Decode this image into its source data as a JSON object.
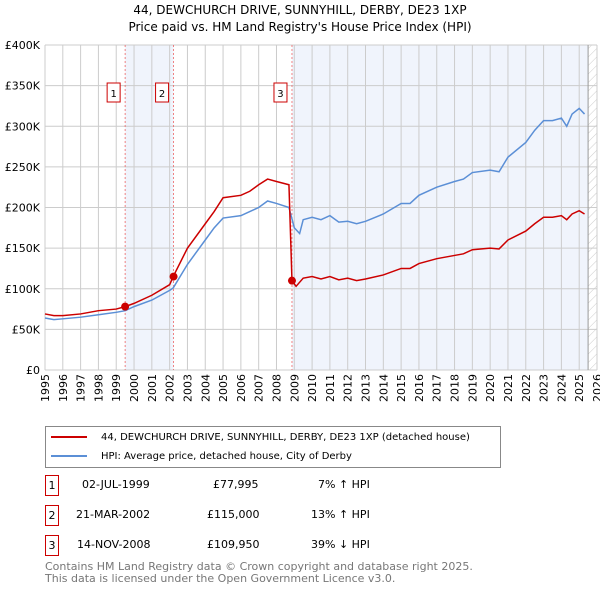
{
  "chart_data": {
    "type": "line",
    "title": "44, DEWCHURCH DRIVE, SUNNYHILL, DERBY, DE23 1XP",
    "subtitle": "Price paid vs. HM Land Registry's House Price Index (HPI)",
    "xlim": [
      1995,
      2026
    ],
    "ylim": [
      0,
      400000
    ],
    "x_ticks": [
      "1995",
      "1996",
      "1997",
      "1998",
      "1999",
      "2000",
      "2001",
      "2002",
      "2003",
      "2004",
      "2005",
      "2006",
      "2007",
      "2008",
      "2009",
      "2010",
      "2011",
      "2012",
      "2013",
      "2014",
      "2015",
      "2016",
      "2017",
      "2018",
      "2019",
      "2020",
      "2021",
      "2022",
      "2023",
      "2024",
      "2025",
      "2026"
    ],
    "y_ticks": [
      {
        "v": 0,
        "label": "£0"
      },
      {
        "v": 50000,
        "label": "£50K"
      },
      {
        "v": 100000,
        "label": "£100K"
      },
      {
        "v": 150000,
        "label": "£150K"
      },
      {
        "v": 200000,
        "label": "£200K"
      },
      {
        "v": 250000,
        "label": "£250K"
      },
      {
        "v": 300000,
        "label": "£300K"
      },
      {
        "v": 350000,
        "label": "£350K"
      },
      {
        "v": 400000,
        "label": "£400K"
      }
    ],
    "grid": true,
    "series": [
      {
        "name": "44, DEWCHURCH DRIVE, SUNNYHILL, DERBY, DE23 1XP (detached house)",
        "color": "#cc0000",
        "x": [
          1995,
          1995.5,
          1996,
          1997,
          1998,
          1999,
          1999.5,
          2000,
          2001,
          2002,
          2002.2,
          2003,
          2004,
          2004.5,
          2005,
          2006,
          2006.5,
          2007,
          2007.5,
          2008,
          2008.7,
          2008.87,
          2009.1,
          2009.5,
          2010,
          2010.5,
          2011,
          2011.5,
          2012,
          2012.5,
          2013,
          2014,
          2015,
          2015.5,
          2016,
          2017,
          2018,
          2018.5,
          2019,
          2020,
          2020.5,
          2021,
          2022,
          2022.5,
          2023,
          2023.5,
          2024,
          2024.3,
          2024.6,
          2025,
          2025.3
        ],
        "y": [
          69000,
          67000,
          67000,
          69000,
          73000,
          75000,
          78000,
          82000,
          92000,
          105000,
          115000,
          150000,
          180000,
          195000,
          212000,
          215000,
          220000,
          228000,
          235000,
          232000,
          228000,
          110000,
          103000,
          113000,
          115000,
          112000,
          115000,
          111000,
          113000,
          110000,
          112000,
          117000,
          125000,
          125000,
          131000,
          137000,
          141000,
          143000,
          148000,
          150000,
          149000,
          160000,
          171000,
          180000,
          188000,
          188000,
          190000,
          185000,
          192000,
          196000,
          192000
        ]
      },
      {
        "name": "HPI: Average price, detached house, City of Derby",
        "color": "#5b8fd6",
        "x": [
          1995,
          1995.5,
          1996,
          1997,
          1998,
          1999,
          1999.5,
          2000,
          2001,
          2002,
          2002.2,
          2003,
          2004,
          2004.5,
          2005,
          2006,
          2006.5,
          2007,
          2007.5,
          2008,
          2008.7,
          2009,
          2009.3,
          2009.5,
          2010,
          2010.5,
          2011,
          2011.5,
          2012,
          2012.5,
          2013,
          2014,
          2015,
          2015.5,
          2016,
          2017,
          2018,
          2018.5,
          2019,
          2020,
          2020.5,
          2021,
          2022,
          2022.5,
          2023,
          2023.5,
          2024,
          2024.3,
          2024.6,
          2025,
          2025.3
        ],
        "y": [
          64000,
          62000,
          63000,
          65000,
          68000,
          71000,
          73000,
          78000,
          86000,
          98000,
          101000,
          130000,
          160000,
          175000,
          187000,
          190000,
          195000,
          200000,
          208000,
          205000,
          200000,
          175000,
          168000,
          185000,
          188000,
          185000,
          190000,
          182000,
          183000,
          180000,
          183000,
          192000,
          205000,
          205000,
          215000,
          225000,
          232000,
          235000,
          243000,
          246000,
          244000,
          262000,
          280000,
          295000,
          307000,
          307000,
          310000,
          300000,
          315000,
          322000,
          315000
        ]
      }
    ],
    "shaded_ranges": [
      [
        1999.5,
        2002.22
      ],
      [
        2008.87,
        2025.5
      ]
    ],
    "hatched_from": 2025.5,
    "sales": [
      {
        "id": "1",
        "x": 1999.5,
        "price": 77995,
        "date": "02-JUL-1999",
        "price_label": "£77,995",
        "hpi": "7% ↑ HPI"
      },
      {
        "id": "2",
        "x": 2002.22,
        "price": 115000,
        "date": "21-MAR-2002",
        "price_label": "£115,000",
        "hpi": "13% ↑ HPI"
      },
      {
        "id": "3",
        "x": 2008.87,
        "price": 109950,
        "date": "14-NOV-2008",
        "price_label": "£109,950",
        "hpi": "39% ↓ HPI"
      }
    ]
  },
  "footer": {
    "line1": "Contains HM Land Registry data © Crown copyright and database right 2025.",
    "line2": "This data is licensed under the Open Government Licence v3.0."
  }
}
